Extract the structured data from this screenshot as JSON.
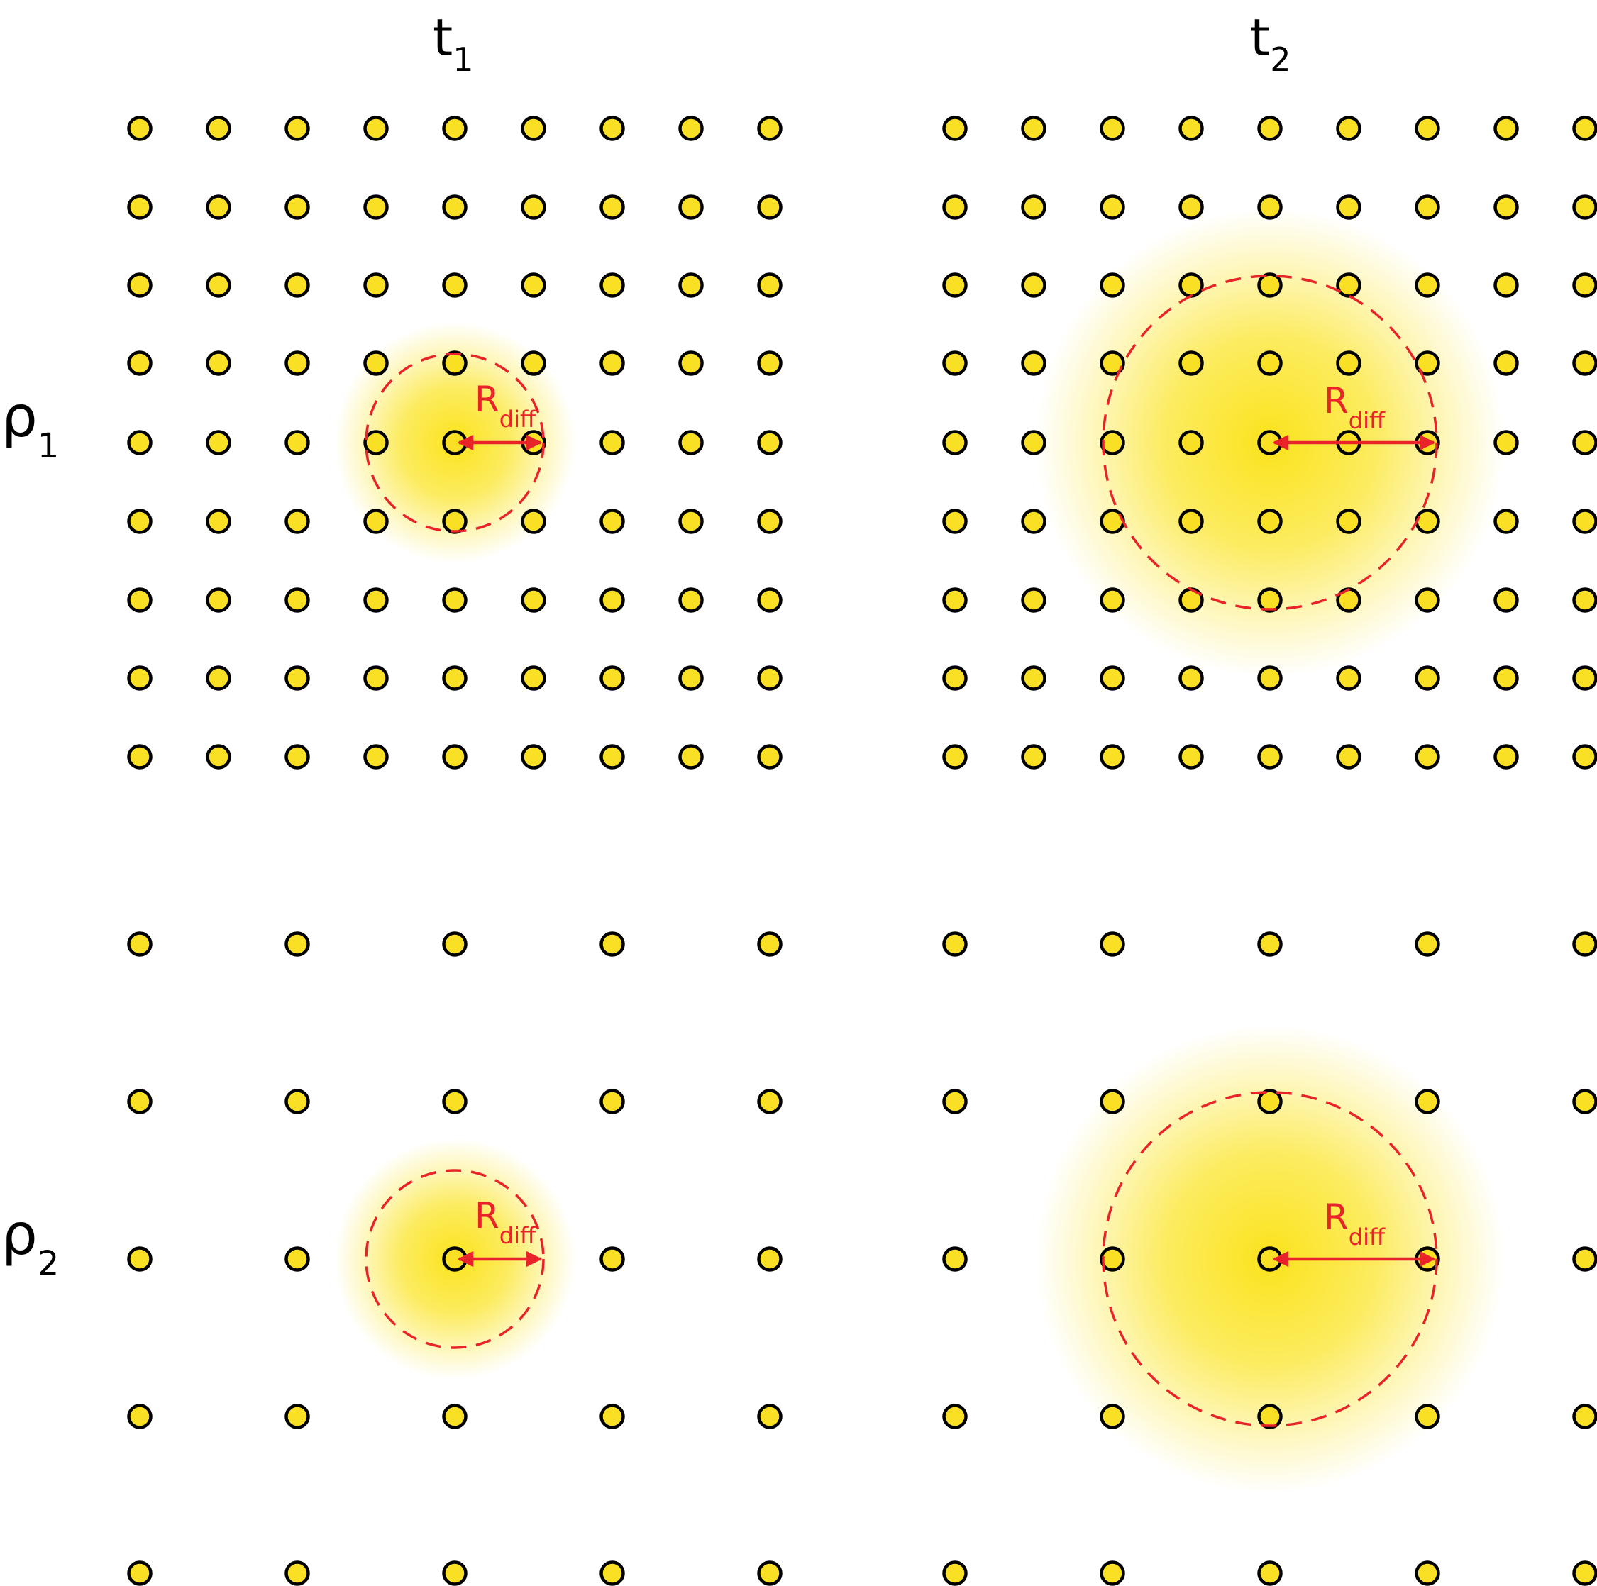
{
  "columns": [
    {
      "symbol": "t",
      "subscript": "1"
    },
    {
      "symbol": "t",
      "subscript": "2"
    }
  ],
  "rows": [
    {
      "symbol": "ρ",
      "subscript": "1"
    },
    {
      "symbol": "ρ",
      "subscript": "2"
    }
  ],
  "radius_label": {
    "main": "R",
    "subscript": "diff"
  },
  "colors": {
    "dot_fill": "#f9e025",
    "dot_stroke": "#000000",
    "glow": "#fbe31c",
    "radius": "#e8232a",
    "text": "#000000"
  }
}
